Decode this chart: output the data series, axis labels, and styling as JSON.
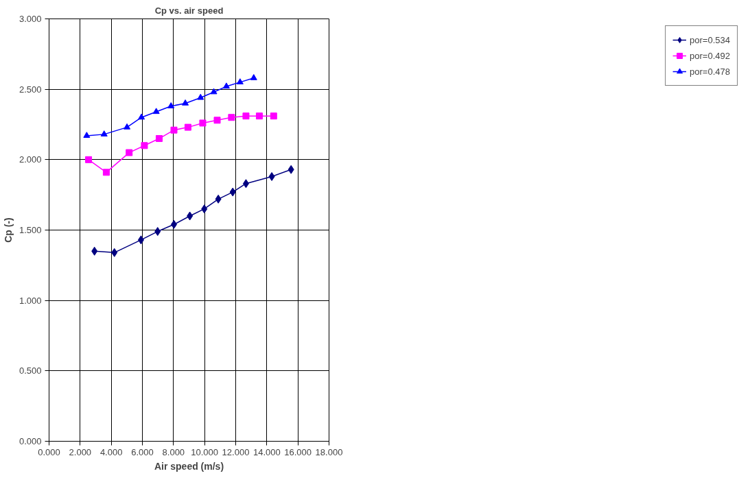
{
  "chart_data": {
    "type": "line",
    "title": "Cp vs. air speed",
    "xlabel": "Air speed (m/s)",
    "ylabel": "Cp (-)",
    "xlim": [
      0,
      18
    ],
    "ylim": [
      0,
      3
    ],
    "xticks": [
      {
        "value": 0,
        "label": "0.000"
      },
      {
        "value": 2,
        "label": "2.000"
      },
      {
        "value": 4,
        "label": "4.000"
      },
      {
        "value": 6,
        "label": "6.000"
      },
      {
        "value": 8,
        "label": "8.000"
      },
      {
        "value": 10,
        "label": "10.000"
      },
      {
        "value": 12,
        "label": "12.000"
      },
      {
        "value": 14,
        "label": "14.000"
      },
      {
        "value": 16,
        "label": "16.000"
      },
      {
        "value": 18,
        "label": "18.000"
      }
    ],
    "yticks": [
      {
        "value": 0,
        "label": "0.000"
      },
      {
        "value": 0.5,
        "label": "0.500"
      },
      {
        "value": 1,
        "label": "1.000"
      },
      {
        "value": 1.5,
        "label": "1.500"
      },
      {
        "value": 2,
        "label": "2.000"
      },
      {
        "value": 2.5,
        "label": "2.500"
      },
      {
        "value": 3,
        "label": "3.000"
      }
    ],
    "grid": true,
    "legend": "right",
    "series": [
      {
        "name": "por=0.534",
        "color": "#000080",
        "marker": "diamond",
        "x": [
          2.92,
          4.2,
          5.91,
          6.98,
          8.03,
          9.05,
          9.98,
          10.88,
          11.81,
          12.66,
          14.32,
          15.56
        ],
        "values": [
          1.35,
          1.34,
          1.43,
          1.49,
          1.54,
          1.6,
          1.65,
          1.72,
          1.77,
          1.83,
          1.88,
          1.93
        ]
      },
      {
        "name": "por=0.492",
        "color": "#ff00ff",
        "marker": "square",
        "x": [
          2.54,
          3.68,
          5.15,
          6.13,
          7.08,
          8.03,
          8.93,
          9.88,
          10.81,
          11.73,
          12.66,
          13.52,
          14.44
        ],
        "values": [
          2.0,
          1.91,
          2.05,
          2.1,
          2.15,
          2.21,
          2.23,
          2.26,
          2.28,
          2.3,
          2.31,
          2.31,
          2.31
        ]
      },
      {
        "name": "por=0.478",
        "color": "#0000ff",
        "marker": "triangle",
        "x": [
          2.42,
          3.54,
          5.01,
          5.94,
          6.89,
          7.84,
          8.76,
          9.74,
          10.59,
          11.4,
          12.28,
          13.16
        ],
        "values": [
          2.17,
          2.18,
          2.23,
          2.3,
          2.34,
          2.38,
          2.4,
          2.44,
          2.48,
          2.52,
          2.55,
          2.58
        ]
      }
    ]
  }
}
